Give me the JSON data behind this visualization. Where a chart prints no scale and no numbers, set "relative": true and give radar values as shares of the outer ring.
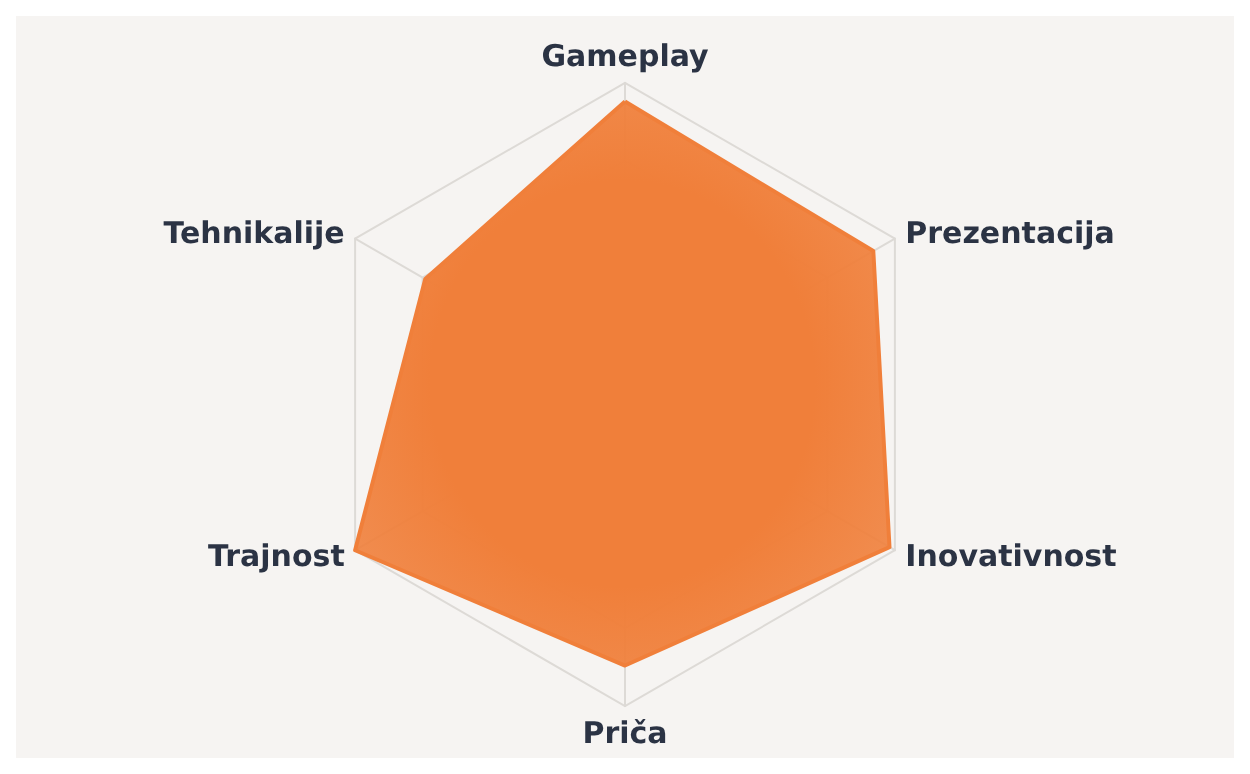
{
  "chart_data": {
    "type": "radar",
    "relative": true,
    "categories": [
      "Gameplay",
      "Prezentacija",
      "Inovativnost",
      "Priča",
      "Trajnost",
      "Tehnikalije"
    ],
    "series": [
      {
        "color": "#f07f3a",
        "values": [
          0.94,
          0.92,
          0.98,
          0.87,
          1.0,
          0.74
        ]
      }
    ],
    "grid": true
  }
}
